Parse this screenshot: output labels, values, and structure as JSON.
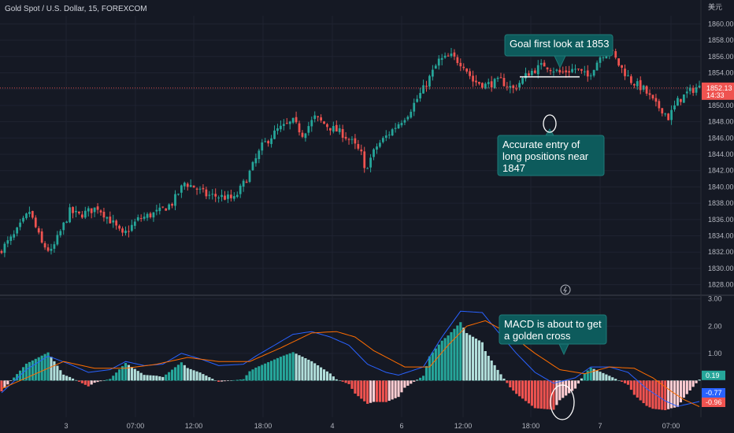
{
  "header": {
    "symbol_title": "Gold Spot / U.S. Dollar, 15, FOREXCOM",
    "currency": "美元"
  },
  "colors": {
    "background": "#151924",
    "bull": "#26a69a",
    "bear": "#ef5350",
    "macd_line": "#2962ff",
    "signal_line": "#ff6d00",
    "grid": "#1f2331"
  },
  "chart_data": [
    {
      "type": "candlestick",
      "title": "Gold Spot / U.S. Dollar, 15, FOREXCOM",
      "ylim": [
        1827,
        1861
      ],
      "y_ticks": [
        "1860.00",
        "1858.00",
        "1856.00",
        "1854.00",
        "1852.00",
        "1850.00",
        "1848.00",
        "1846.00",
        "1844.00",
        "1842.00",
        "1840.00",
        "1838.00",
        "1836.00",
        "1834.00",
        "1832.00",
        "1830.00",
        "1828.00"
      ],
      "x_ticks": [
        "3",
        "07:00",
        "12:00",
        "18:00",
        "4",
        "6",
        "12:00",
        "18:00",
        "7",
        "07:00"
      ],
      "price_path": [
        [
          0,
          1832
        ],
        [
          5,
          1834
        ],
        [
          10,
          1837
        ],
        [
          14,
          1833
        ],
        [
          17,
          1832
        ],
        [
          23,
          1837
        ],
        [
          26,
          1836.5
        ],
        [
          32,
          1837.5
        ],
        [
          37,
          1835.5
        ],
        [
          40,
          1834
        ],
        [
          45,
          1836
        ],
        [
          52,
          1837
        ],
        [
          56,
          1838
        ],
        [
          60,
          1840.5
        ],
        [
          63,
          1840
        ],
        [
          67,
          1839
        ],
        [
          72,
          1838.8
        ],
        [
          76,
          1838.5
        ],
        [
          80,
          1841
        ],
        [
          85,
          1845
        ],
        [
          90,
          1847
        ],
        [
          95,
          1848
        ],
        [
          98,
          1846.5
        ],
        [
          102,
          1848.5
        ],
        [
          106,
          1847.5
        ],
        [
          111,
          1846.5
        ],
        [
          114,
          1845.5
        ],
        [
          117,
          1844
        ],
        [
          118,
          1842
        ],
        [
          122,
          1845
        ],
        [
          127,
          1847
        ],
        [
          132,
          1849
        ],
        [
          137,
          1852
        ],
        [
          142,
          1855.5
        ],
        [
          146,
          1856
        ],
        [
          150,
          1855
        ],
        [
          153,
          1853
        ],
        [
          157,
          1852.5
        ],
        [
          162,
          1853
        ],
        [
          166,
          1852
        ],
        [
          171,
          1854
        ],
        [
          176,
          1855
        ],
        [
          181,
          1854
        ],
        [
          186,
          1854.5
        ],
        [
          190,
          1853.5
        ],
        [
          194,
          1856
        ],
        [
          197,
          1857
        ],
        [
          200,
          1855
        ],
        [
          204,
          1853
        ],
        [
          208,
          1852
        ],
        [
          212,
          1850
        ],
        [
          214,
          1849.5
        ],
        [
          216,
          1848.5
        ],
        [
          219,
          1850.5
        ],
        [
          222,
          1851.5
        ],
        [
          225,
          1852.2
        ]
      ],
      "current_price": {
        "label": "1852.13",
        "countdown": "14:33",
        "value": 1852.13
      },
      "annotations": [
        {
          "text": [
            "Goal first look at 1853"
          ],
          "target": 1853.5
        },
        {
          "text": [
            "Accurate entry of",
            "long positions near",
            "1847"
          ],
          "target": 1847.5
        }
      ]
    },
    {
      "type": "macd",
      "ylim": [
        -1.35,
        3.05
      ],
      "y_ticks": [
        "3.00",
        "2.00",
        "1.00"
      ],
      "macd_path": [
        [
          0,
          -0.45
        ],
        [
          8,
          0.4
        ],
        [
          15,
          0.9
        ],
        [
          22,
          0.6
        ],
        [
          28,
          0.3
        ],
        [
          35,
          0.4
        ],
        [
          40,
          0.7
        ],
        [
          46,
          0.55
        ],
        [
          52,
          0.6
        ],
        [
          58,
          1.0
        ],
        [
          64,
          0.8
        ],
        [
          70,
          0.55
        ],
        [
          78,
          0.6
        ],
        [
          82,
          0.9
        ],
        [
          88,
          1.3
        ],
        [
          94,
          1.7
        ],
        [
          100,
          1.8
        ],
        [
          106,
          1.6
        ],
        [
          112,
          1.3
        ],
        [
          118,
          0.6
        ],
        [
          124,
          0.3
        ],
        [
          128,
          0.2
        ],
        [
          136,
          0.5
        ],
        [
          142,
          1.6
        ],
        [
          148,
          2.55
        ],
        [
          155,
          2.5
        ],
        [
          160,
          1.8
        ],
        [
          166,
          1.0
        ],
        [
          172,
          0.3
        ],
        [
          178,
          -0.1
        ],
        [
          185,
          0.1
        ],
        [
          190,
          0.5
        ],
        [
          196,
          0.5
        ],
        [
          202,
          0.3
        ],
        [
          208,
          -0.3
        ],
        [
          214,
          -0.75
        ],
        [
          218,
          -0.95
        ],
        [
          225,
          -0.77
        ]
      ],
      "signal_path": [
        [
          0,
          -0.3
        ],
        [
          10,
          0.2
        ],
        [
          20,
          0.7
        ],
        [
          30,
          0.45
        ],
        [
          40,
          0.45
        ],
        [
          50,
          0.6
        ],
        [
          60,
          0.85
        ],
        [
          70,
          0.7
        ],
        [
          80,
          0.7
        ],
        [
          90,
          1.2
        ],
        [
          100,
          1.75
        ],
        [
          108,
          1.8
        ],
        [
          114,
          1.6
        ],
        [
          120,
          1.1
        ],
        [
          130,
          0.5
        ],
        [
          138,
          0.5
        ],
        [
          144,
          1.3
        ],
        [
          150,
          2.0
        ],
        [
          156,
          2.2
        ],
        [
          164,
          1.7
        ],
        [
          172,
          1.0
        ],
        [
          180,
          0.4
        ],
        [
          188,
          0.25
        ],
        [
          196,
          0.5
        ],
        [
          204,
          0.45
        ],
        [
          210,
          0.1
        ],
        [
          216,
          -0.4
        ],
        [
          220,
          -0.7
        ],
        [
          225,
          -0.96
        ]
      ],
      "histogram_last": "0.19",
      "macd_last": "-0.77",
      "signal_last": "-0.96",
      "annotation": {
        "text": [
          "MACD is about to get",
          "a golden cross"
        ]
      }
    }
  ]
}
